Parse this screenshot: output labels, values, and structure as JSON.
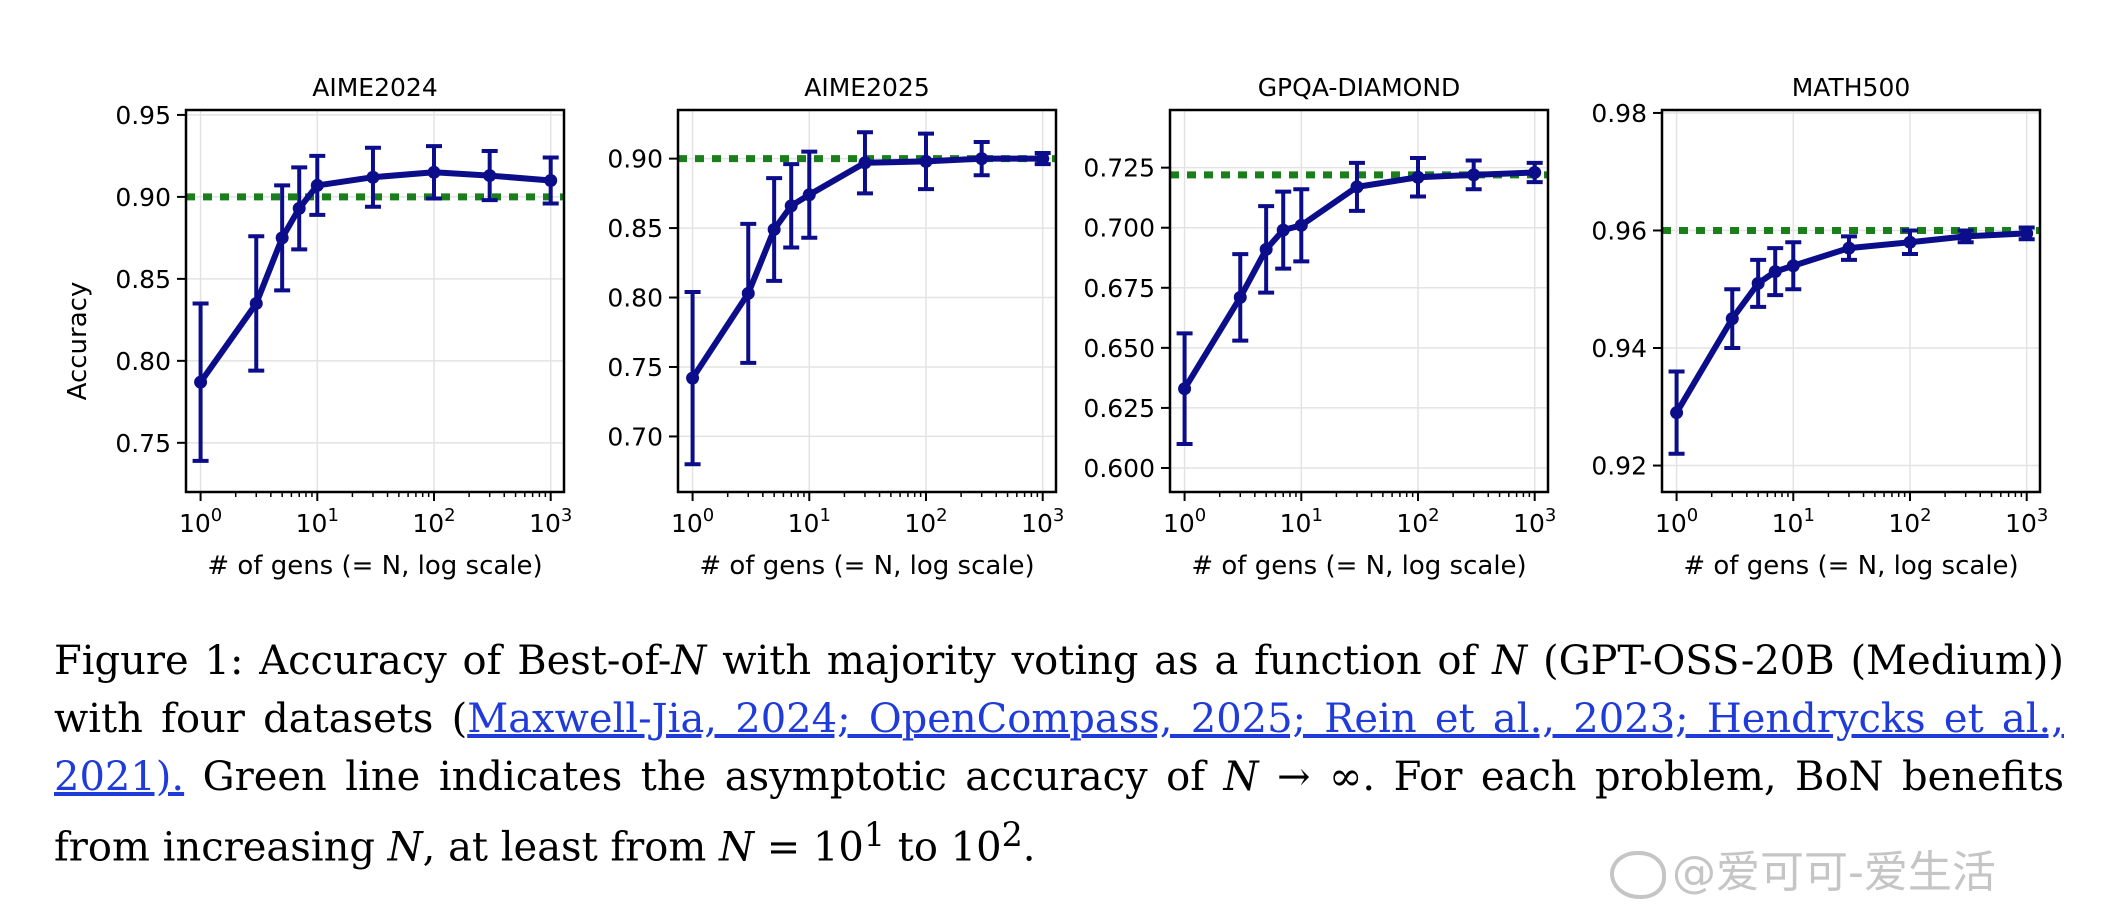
{
  "chart_data": [
    {
      "type": "line",
      "title": "AIME2024",
      "xlabel": "# of gens (= N, log scale)",
      "ylabel": "Accuracy",
      "xscale": "log",
      "xlim": [
        0.75,
        1300
      ],
      "ylim": [
        0.72,
        0.953
      ],
      "yticks": [
        0.75,
        0.8,
        0.85,
        0.9,
        0.95
      ],
      "ytick_labels": [
        "0.75",
        "0.80",
        "0.85",
        "0.90",
        "0.95"
      ],
      "xticks": [
        1,
        10,
        100,
        1000
      ],
      "asymptote": 0.9,
      "x": [
        1,
        3,
        5,
        7,
        10,
        30,
        100,
        300,
        1000
      ],
      "y": [
        0.787,
        0.835,
        0.875,
        0.893,
        0.907,
        0.912,
        0.915,
        0.913,
        0.91
      ],
      "err": [
        0.048,
        0.041,
        0.032,
        0.025,
        0.018,
        0.018,
        0.016,
        0.015,
        0.014
      ]
    },
    {
      "type": "line",
      "title": "AIME2025",
      "xlabel": "# of gens (= N, log scale)",
      "xscale": "log",
      "xlim": [
        0.75,
        1300
      ],
      "ylim": [
        0.66,
        0.935
      ],
      "yticks": [
        0.7,
        0.75,
        0.8,
        0.85,
        0.9
      ],
      "ytick_labels": [
        "0.70",
        "0.75",
        "0.80",
        "0.85",
        "0.90"
      ],
      "xticks": [
        1,
        10,
        100,
        1000
      ],
      "asymptote": 0.9,
      "x": [
        1,
        3,
        5,
        7,
        10,
        30,
        100,
        300,
        1000
      ],
      "y": [
        0.742,
        0.803,
        0.849,
        0.866,
        0.874,
        0.897,
        0.898,
        0.9,
        0.9
      ],
      "err": [
        0.062,
        0.05,
        0.037,
        0.03,
        0.031,
        0.022,
        0.02,
        0.012,
        0.004
      ]
    },
    {
      "type": "line",
      "title": "GPQA-DIAMOND",
      "xlabel": "# of gens (= N, log scale)",
      "xscale": "log",
      "xlim": [
        0.75,
        1300
      ],
      "ylim": [
        0.59,
        0.749
      ],
      "yticks": [
        0.6,
        0.625,
        0.65,
        0.675,
        0.7,
        0.725
      ],
      "ytick_labels": [
        "0.600",
        "0.625",
        "0.650",
        "0.675",
        "0.700",
        "0.725"
      ],
      "xticks": [
        1,
        10,
        100,
        1000
      ],
      "asymptote": 0.722,
      "x": [
        1,
        3,
        5,
        7,
        10,
        30,
        100,
        300,
        1000
      ],
      "y": [
        0.633,
        0.671,
        0.691,
        0.699,
        0.701,
        0.717,
        0.721,
        0.722,
        0.723
      ],
      "err": [
        0.023,
        0.018,
        0.018,
        0.016,
        0.015,
        0.01,
        0.008,
        0.006,
        0.004
      ]
    },
    {
      "type": "line",
      "title": "MATH500",
      "xlabel": "# of gens (= N, log scale)",
      "xscale": "log",
      "xlim": [
        0.75,
        1300
      ],
      "ylim": [
        0.9155,
        0.9805
      ],
      "yticks": [
        0.92,
        0.94,
        0.96,
        0.98
      ],
      "ytick_labels": [
        "0.92",
        "0.94",
        "0.96",
        "0.98"
      ],
      "xticks": [
        1,
        10,
        100,
        1000
      ],
      "asymptote": 0.96,
      "x": [
        1,
        3,
        5,
        7,
        10,
        30,
        100,
        300,
        1000
      ],
      "y": [
        0.929,
        0.945,
        0.951,
        0.953,
        0.954,
        0.957,
        0.958,
        0.959,
        0.9595
      ],
      "err": [
        0.007,
        0.005,
        0.004,
        0.004,
        0.004,
        0.002,
        0.002,
        0.001,
        0.001
      ]
    }
  ],
  "colors": {
    "series": "#0b0d8a",
    "asymptote": "#1a7f1a",
    "grid": "#e3e3e3",
    "link": "#1f3bd9"
  },
  "caption": {
    "p1": "Figure 1: Accuracy of Best-of-",
    "N1": "N",
    "p2": " with majority voting as a function of ",
    "N2": "N",
    "p3": " (GPT-OSS-20B (Medium)) with four datasets (",
    "citations": "Maxwell-Jia, 2024; OpenCompass, 2025; Rein et al., 2023; Hendrycks et al., 2021).",
    "p4": "  Green line indicates the asymptotic accuracy of ",
    "N3": "N",
    "arrow": " → ∞",
    "p5": ". For each problem, BoN benefits from increasing ",
    "N4": "N",
    "p6": ", at least from ",
    "N5": "N",
    "p7": " = 10",
    "sup1": "1",
    "p8": " to 10",
    "sup2": "2",
    "p9": "."
  },
  "watermark": "@爱可可-爱生活"
}
